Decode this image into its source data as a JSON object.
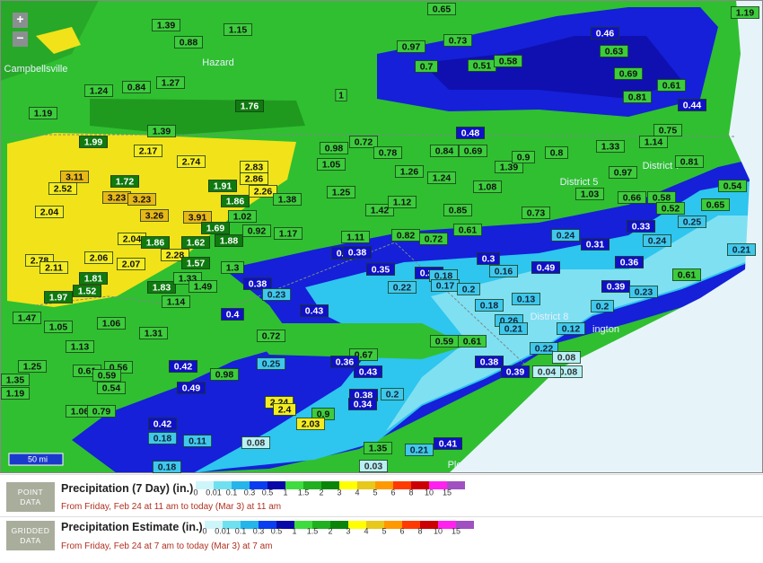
{
  "map": {
    "zoom_in": "+",
    "zoom_out": "−",
    "scale": "50 mi",
    "places": [
      "Campbellsville",
      "Hazard",
      "District 5",
      "District 7",
      "District 8",
      "ington",
      "Pleasant"
    ],
    "labels": [
      1.39,
      0.88,
      1.15,
      1.24,
      0.84,
      1.27,
      1,
      1.76,
      1.19,
      1.39,
      0.97,
      0.73,
      0.7,
      0.51,
      0.58,
      0.46,
      0.63,
      0.69,
      0.81,
      0.61,
      0.44,
      0.75,
      1.19,
      0.48,
      1.99,
      2.17,
      2.74,
      2.83,
      0.72,
      0.98,
      0.78,
      0.84,
      0.69,
      0.8,
      1.33,
      1.14,
      0.97,
      0.81,
      3.11,
      2.52,
      1.72,
      3.23,
      3.23,
      1.91,
      2.86,
      1.86,
      2.26,
      1.05,
      1.26,
      1.24,
      1.39,
      0.9,
      2.04,
      3.26,
      3.91,
      1.69,
      1.02,
      1.38,
      1.25,
      1.42,
      1.12,
      0.85,
      1.08,
      0.73,
      0.66,
      0.58,
      0.52,
      0.54,
      0.65,
      1.03,
      0.33,
      0.25,
      0.24,
      0.31,
      0.24,
      0.36,
      0.21,
      0.61,
      0.49,
      0.39,
      0.23,
      0.2,
      0.13,
      0.26,
      0.21,
      0.12,
      0.22,
      0.08,
      0.08,
      0.04,
      2.04,
      1.86,
      1.62,
      1.88,
      0.92,
      1.17,
      1.11,
      0.82,
      0.72,
      0.61,
      0.4,
      0.38,
      0.35,
      0.34,
      0.18,
      0.3,
      0.16,
      0.22,
      0.17,
      0.2,
      0.18,
      2.78,
      2.11,
      2.06,
      2.07,
      2.28,
      1.57,
      1.3,
      1.81,
      1.52,
      1.97,
      1.83,
      1.33,
      1.49,
      0.38,
      0.23,
      0.43,
      0.4,
      1.14,
      1.47,
      1.05,
      1.06,
      1.31,
      0.72,
      1.13,
      0.59,
      0.61,
      1.25,
      0.61,
      0.56,
      0.59,
      0.42,
      0.98,
      0.25,
      0.67,
      0.36,
      0.43,
      0.38,
      0.39,
      1.35,
      0.54,
      0.49,
      0.38,
      0.34,
      0.2,
      1.19,
      1.06,
      0.79,
      2.24,
      2.4,
      0.9,
      2.03,
      0.42,
      0.18,
      0.11,
      0.08,
      1.35,
      0.21,
      0.41,
      0.18,
      0.03,
      0.65
    ]
  },
  "legend": {
    "colors": [
      "#cdf6fa",
      "#6fe0f0",
      "#25b5ea",
      "#0a3df0",
      "#0808a8",
      "#3edc3e",
      "#20b020",
      "#0a850a",
      "#ffff00",
      "#e8c81a",
      "#ff9900",
      "#ff3a00",
      "#cc0000",
      "#ff22ee",
      "#a050c0"
    ],
    "ticks": [
      0,
      0.01,
      0.1,
      0.3,
      0.5,
      1,
      1.5,
      2,
      3,
      4,
      5,
      6,
      8,
      10,
      15
    ],
    "point": {
      "badge": "POINT DATA",
      "title": "Precipitation (7 Day) (in.)",
      "subtitle": "From Friday, Feb 24 at 11 am to today (Mar 3) at 11 am"
    },
    "gridded": {
      "badge": "GRIDDED DATA",
      "title": "Precipitation Estimate (in.)",
      "subtitle": "From Friday, Feb 24 at 7 am to today (Mar 3) at 7 am"
    }
  }
}
